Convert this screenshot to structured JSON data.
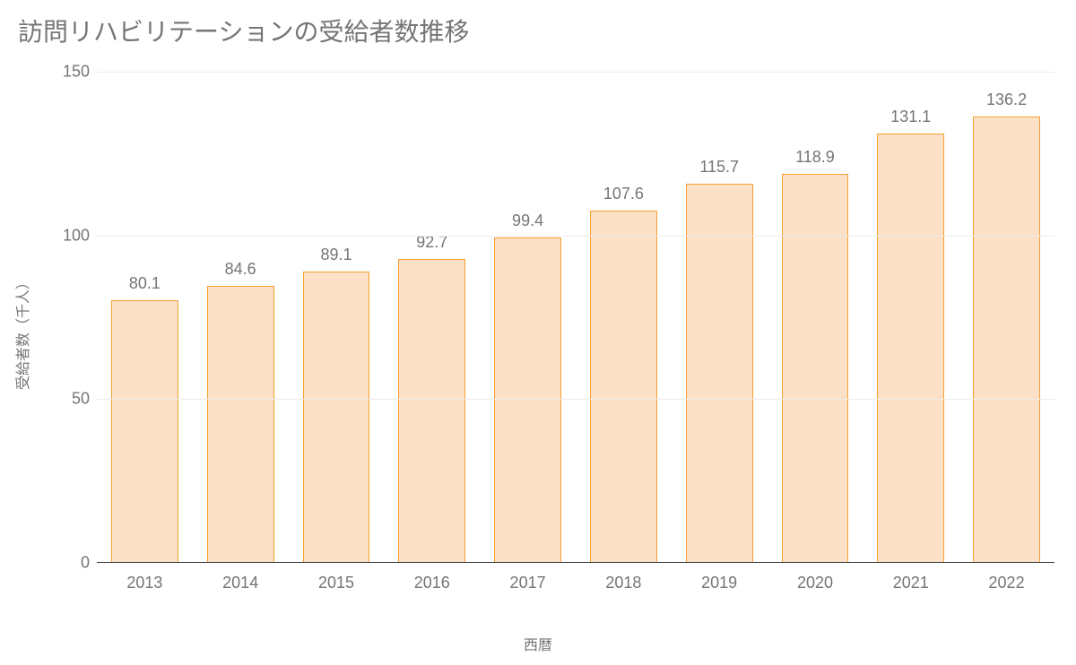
{
  "chart": {
    "type": "bar",
    "title": "訪問リハビリテーションの受給者数推移",
    "title_fontsize": 28,
    "title_color": "#757575",
    "xlabel": "西暦",
    "ylabel": "受給者数（千人）",
    "label_fontsize": 16,
    "label_color": "#757575",
    "categories": [
      "2013",
      "2014",
      "2015",
      "2016",
      "2017",
      "2018",
      "2019",
      "2020",
      "2021",
      "2022"
    ],
    "values": [
      80.1,
      84.6,
      89.1,
      92.7,
      99.4,
      107.6,
      115.7,
      118.9,
      131.1,
      136.2
    ],
    "value_labels": [
      "80.1",
      "84.6",
      "89.1",
      "92.7",
      "99.4",
      "107.6",
      "115.7",
      "118.9",
      "131.1",
      "136.2"
    ],
    "ylim": [
      0,
      150
    ],
    "yticks": [
      0,
      50,
      100,
      150
    ],
    "ytick_labels": [
      "0",
      "50",
      "100",
      "150"
    ],
    "tick_fontsize": 18,
    "tick_color": "#757575",
    "bar_fill": "#fce0c7",
    "bar_border": "#f6a030",
    "bar_width_ratio": 0.7,
    "grid_color": "#ececec",
    "baseline_color": "#333333",
    "background_color": "#ffffff"
  }
}
